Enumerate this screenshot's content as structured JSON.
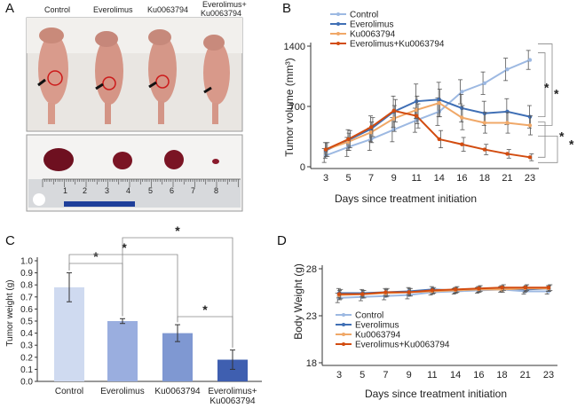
{
  "panels": {
    "a": {
      "letter": "A",
      "photo_labels": [
        "Control",
        "Everolimus",
        "Ku0063794",
        "Everolimus+",
        "Ku0063794"
      ],
      "ruler_numbers": [
        "1",
        "2",
        "3",
        "4",
        "5",
        "6",
        "7",
        "8"
      ]
    },
    "b": {
      "letter": "B"
    },
    "c": {
      "letter": "C"
    },
    "d": {
      "letter": "D"
    }
  },
  "chart_data": [
    {
      "id": "B",
      "type": "line",
      "xlabel": "Days since treatment initiation",
      "ylabel": "Tumor volume (mm³)",
      "x": [
        3,
        5,
        7,
        9,
        11,
        14,
        16,
        18,
        21,
        23
      ],
      "yticks": [
        0,
        700,
        1400
      ],
      "ylim": [
        0,
        1400
      ],
      "series": [
        {
          "name": "Control",
          "color": "#9db9e2",
          "values": [
            130,
            230,
            320,
            430,
            540,
            640,
            870,
            970,
            1130,
            1240
          ],
          "errors": [
            80,
            110,
            130,
            140,
            140,
            160,
            140,
            130,
            130,
            110
          ]
        },
        {
          "name": "Everolimus",
          "color": "#3f6fb5",
          "values": [
            190,
            310,
            440,
            640,
            760,
            780,
            680,
            620,
            640,
            580
          ],
          "errors": [
            90,
            120,
            150,
            180,
            200,
            200,
            160,
            140,
            150,
            130
          ]
        },
        {
          "name": "Ku0063794",
          "color": "#f0a868",
          "values": [
            200,
            290,
            400,
            560,
            660,
            740,
            570,
            510,
            510,
            480
          ],
          "errors": [
            80,
            100,
            120,
            150,
            160,
            160,
            140,
            120,
            120,
            110
          ]
        },
        {
          "name": "Everolimus+Ku0063794",
          "color": "#d24c10",
          "values": [
            200,
            320,
            460,
            650,
            590,
            320,
            260,
            200,
            150,
            110
          ],
          "errors": [
            80,
            100,
            110,
            130,
            140,
            100,
            80,
            60,
            50,
            40
          ]
        }
      ],
      "significance": [
        "*",
        "*",
        "*",
        "*"
      ]
    },
    {
      "id": "C",
      "type": "bar",
      "ylabel": "Tumor weight (g)",
      "categories": [
        "Control",
        "Everolimus",
        "Ku0063794",
        "Everolimus+\nKu0063794"
      ],
      "values": [
        0.78,
        0.5,
        0.4,
        0.18
      ],
      "errors": [
        0.12,
        0.02,
        0.07,
        0.08
      ],
      "colors": [
        "#cfdaf0",
        "#9aaedf",
        "#7f98d2",
        "#3f5fb0"
      ],
      "yticks": [
        "0.0",
        "0.1",
        "0.2",
        "0.3",
        "0.4",
        "0.5",
        "0.6",
        "0.7",
        "0.8",
        "0.9",
        "1.0"
      ],
      "ylim": [
        0,
        1.0
      ],
      "significance": [
        "*",
        "*",
        "*",
        "*"
      ]
    },
    {
      "id": "D",
      "type": "line",
      "xlabel": "Days since treatment initiation",
      "ylabel": "Body Weight (g)",
      "x": [
        3,
        5,
        7,
        9,
        11,
        14,
        16,
        18,
        21,
        23
      ],
      "yticks": [
        18,
        23,
        28
      ],
      "ylim": [
        18,
        28
      ],
      "series": [
        {
          "name": "Control",
          "color": "#9db9e2",
          "values": [
            24.9,
            25.0,
            25.1,
            25.2,
            25.5,
            25.6,
            25.7,
            25.8,
            25.6,
            25.6
          ],
          "errors": [
            0.5,
            0.4,
            0.4,
            0.4,
            0.3,
            0.3,
            0.3,
            0.3,
            0.3,
            0.3
          ]
        },
        {
          "name": "Everolimus",
          "color": "#3f6fb5",
          "values": [
            25.4,
            25.4,
            25.5,
            25.6,
            25.8,
            25.7,
            25.8,
            25.9,
            25.8,
            25.9
          ],
          "errors": [
            0.5,
            0.4,
            0.4,
            0.4,
            0.3,
            0.3,
            0.3,
            0.3,
            0.3,
            0.3
          ]
        },
        {
          "name": "Ku0063794",
          "color": "#f0a868",
          "values": [
            25.2,
            25.3,
            25.4,
            25.5,
            25.6,
            25.7,
            25.8,
            25.8,
            25.9,
            25.9
          ],
          "errors": [
            0.5,
            0.4,
            0.4,
            0.4,
            0.3,
            0.3,
            0.3,
            0.3,
            0.3,
            0.3
          ]
        },
        {
          "name": "Everolimus+Ku0063794",
          "color": "#d24c10",
          "values": [
            25.3,
            25.3,
            25.5,
            25.5,
            25.7,
            25.8,
            25.9,
            26.0,
            26.0,
            26.0
          ],
          "errors": [
            0.5,
            0.4,
            0.4,
            0.4,
            0.3,
            0.3,
            0.3,
            0.3,
            0.3,
            0.3
          ]
        }
      ]
    }
  ]
}
